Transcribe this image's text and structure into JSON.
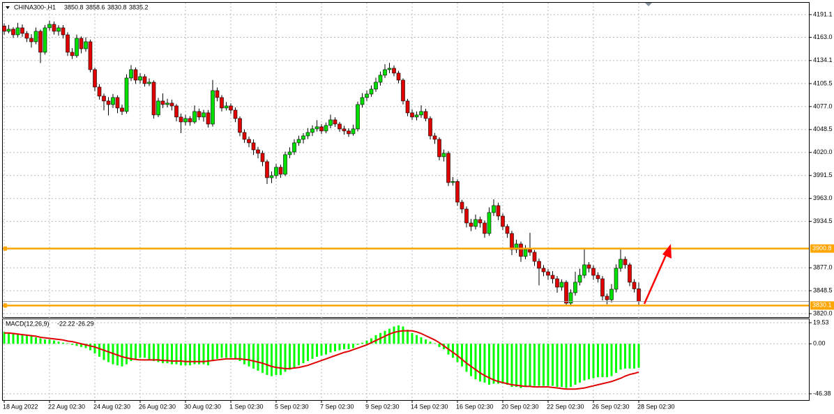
{
  "chart_data": [
    {
      "type": "candlestick",
      "title": "CHINA300-,H1",
      "categories": [
        "18 Aug 2022",
        null,
        null,
        null,
        null,
        null,
        null,
        null,
        null,
        null,
        "22 Aug 02:30",
        null,
        null,
        null,
        null,
        null,
        null,
        null,
        null,
        null,
        "24 Aug 02:30",
        null,
        null,
        null,
        null,
        null,
        null,
        null,
        null,
        null,
        "26 Aug 02:30",
        null,
        null,
        null,
        null,
        null,
        null,
        null,
        null,
        null,
        "30 Aug 02:30",
        null,
        null,
        null,
        null,
        null,
        null,
        null,
        null,
        null,
        "1 Sep 02:30",
        null,
        null,
        null,
        null,
        null,
        null,
        null,
        null,
        null,
        "5 Sep 02:30",
        null,
        null,
        null,
        null,
        null,
        null,
        null,
        null,
        null,
        "7 Sep 02:30",
        null,
        null,
        null,
        null,
        null,
        null,
        null,
        null,
        null,
        "9 Sep 02:30",
        null,
        null,
        null,
        null,
        null,
        null,
        null,
        null,
        null,
        "14 Sep 02:30",
        null,
        null,
        null,
        null,
        null,
        null,
        null,
        null,
        null,
        "16 Sep 02:30",
        null,
        null,
        null,
        null,
        null,
        null,
        null,
        null,
        null,
        "20 Sep 02:30",
        null,
        null,
        null,
        null,
        null,
        null,
        null,
        null,
        null,
        "22 Sep 02:30",
        null,
        null,
        null,
        null,
        null,
        null,
        null,
        null,
        null,
        "26 Sep 02:30",
        null,
        null,
        null,
        null,
        null,
        null,
        null,
        null,
        null,
        "28 Sep 02:30"
      ],
      "open": [
        4177.0,
        4170.4,
        4173.0,
        4166.0,
        4174.7,
        4167.8,
        4161.7,
        4157.4,
        4170.4,
        4144.4,
        4174.7,
        4179.0,
        4170.4,
        4174.7,
        4166.0,
        4144.4,
        4140.1,
        4161.7,
        4148.7,
        4157.4,
        4122.8,
        4101.2,
        4089.9,
        4083.9,
        4079.5,
        4088.2,
        4075.2,
        4070.9,
        4112.4,
        4122.8,
        4109.8,
        4114.1,
        4105.5,
        4107.2,
        4066.6,
        4083.9,
        4079.5,
        4081.3,
        4077.8,
        4064.0,
        4057.9,
        4062.2,
        4057.9,
        4070.9,
        4064.0,
        4069.2,
        4055.3,
        4096.8,
        4088.2,
        4075.2,
        4077.8,
        4072.6,
        4062.2,
        4044.9,
        4036.3,
        4032.0,
        4023.3,
        4019.0,
        4008.6,
        3988.7,
        3991.3,
        4001.7,
        3993.0,
        4017.3,
        4020.7,
        4032.0,
        4036.3,
        4040.6,
        4044.9,
        4049.3,
        4051.9,
        4046.7,
        4053.6,
        4060.5,
        4055.3,
        4049.3,
        4046.7,
        4043.2,
        4049.3,
        4079.5,
        4088.2,
        4092.5,
        4098.6,
        4107.2,
        4115.9,
        4122.8,
        4124.5,
        4118.5,
        4109.8,
        4083.9,
        4069.2,
        4064.0,
        4066.6,
        4070.9,
        4062.2,
        4040.6,
        4036.3,
        4014.7,
        4019.0,
        3982.7,
        3984.1,
        3958.4,
        3949.8,
        3932.5,
        3928.2,
        3936.8,
        3932.5,
        3919.5,
        3945.5,
        3954.1,
        3941.1,
        3928.2,
        3919.5,
        3899.6,
        3906.5,
        3891.0,
        3899.6,
        3896.2,
        3884.9,
        3876.3,
        3871.9,
        3867.6,
        3863.3,
        3852.9,
        3859.0,
        3833.0,
        3846.0,
        3859.0,
        3867.6,
        3880.6,
        3876.3,
        3867.6,
        3863.3,
        3841.7,
        3837.3,
        3850.3,
        3876.3,
        3887.5,
        3880.6,
        3859.0,
        3850.8
      ],
      "high": [
        4180.2,
        4178.3,
        4175.5,
        4180.9,
        4178.9,
        4170.6,
        4166.8,
        4175.1,
        4172.6,
        4178.2,
        4183.6,
        4182.5,
        4178.0,
        4178.1,
        4169.2,
        4149.6,
        4166.3,
        4164.0,
        4162.8,
        4160.1,
        4125.3,
        4104.8,
        4093.1,
        4088.7,
        4092.6,
        4091.0,
        4079.4,
        4117.0,
        4128.5,
        4125.6,
        4118.3,
        4117.2,
        4111.9,
        4109.5,
        4087.7,
        4093.3,
        4086.6,
        4085.4,
        4080.1,
        4068.3,
        4066.8,
        4065.1,
        4078.4,
        4074.5,
        4073.0,
        4072.8,
        4110.0,
        4100.7,
        4091.3,
        4082.6,
        4081.0,
        4075.9,
        4064.8,
        4048.6,
        4039.7,
        4036.2,
        4026.9,
        4022.4,
        4011.2,
        3996.5,
        4005.8,
        4004.9,
        4021.0,
        4026.4,
        4036.5,
        4040.8,
        4044.0,
        4050.3,
        4053.6,
        4060.1,
        4055.4,
        4057.2,
        4066.9,
        4063.7,
        4058.0,
        4053.1,
        4050.0,
        4054.5,
        4083.2,
        4093.6,
        4096.9,
        4103.2,
        4112.8,
        4120.4,
        4129.6,
        4131.2,
        4128.0,
        4121.3,
        4112.0,
        4086.5,
        4073.4,
        4071.0,
        4078.5,
        4074.3,
        4065.0,
        4044.2,
        4039.0,
        4023.6,
        4021.8,
        3989.5,
        3986.7,
        3961.2,
        3953.0,
        3937.6,
        3943.0,
        3940.3,
        3935.7,
        3951.9,
        3962.0,
        3957.6,
        3944.3,
        3931.0,
        3922.8,
        3911.9,
        3909.4,
        3905.1,
        3920.4,
        3899.0,
        3888.6,
        3880.2,
        3875.3,
        3872.8,
        3866.7,
        3862.5,
        3861.4,
        3850.2,
        3872.0,
        3875.8,
        3901.4,
        3884.0,
        3879.9,
        3871.4,
        3866.8,
        3845.0,
        3856.7,
        3881.2,
        3899.8,
        3890.9,
        3883.3,
        3862.7,
        3858.6
      ],
      "low": [
        4166.1,
        4167.9,
        4162.2,
        4163.1,
        4163.6,
        4157.0,
        4150.2,
        4154.3,
        4131.0,
        4141.5,
        4171.2,
        4166.3,
        4164.9,
        4161.4,
        4139.7,
        4136.0,
        4137.5,
        4143.1,
        4145.0,
        4119.5,
        4096.0,
        4085.6,
        4072.4,
        4066.0,
        4075.3,
        4068.8,
        4066.5,
        4068.2,
        4108.7,
        4105.1,
        4106.0,
        4101.8,
        4102.4,
        4062.0,
        4063.8,
        4075.1,
        4075.9,
        4072.2,
        4058.6,
        4044.0,
        4053.7,
        4053.2,
        4055.6,
        4060.1,
        4058.3,
        4050.9,
        4052.1,
        4083.5,
        4071.0,
        4072.4,
        4068.1,
        4057.7,
        4040.2,
        4031.9,
        4026.5,
        4017.0,
        4012.8,
        4003.1,
        3980.9,
        3982.0,
        3987.4,
        3988.6,
        3990.7,
        4012.9,
        4017.1,
        4028.4,
        4031.2,
        4036.7,
        4040.5,
        4046.0,
        4042.8,
        4043.9,
        4050.1,
        4051.8,
        4045.6,
        4042.2,
        4039.4,
        4040.8,
        4046.1,
        4075.7,
        4084.0,
        4089.1,
        4095.3,
        4103.0,
        4112.5,
        4118.4,
        4114.6,
        4105.9,
        4079.6,
        4065.0,
        4060.2,
        4059.8,
        4063.0,
        4058.7,
        4036.1,
        4030.7,
        4010.2,
        4008.9,
        3978.4,
        3979.0,
        3953.9,
        3944.6,
        3927.1,
        3922.4,
        3924.5,
        3926.8,
        3914.2,
        3916.6,
        3941.2,
        3936.0,
        3923.8,
        3914.1,
        3892.7,
        3895.3,
        3884.2,
        3887.5,
        3891.8,
        3879.3,
        3855.0,
        3866.5,
        3861.9,
        3857.4,
        3846.0,
        3848.8,
        3829.6,
        3830.1,
        3842.3,
        3855.1,
        3863.9,
        3871.2,
        3862.0,
        3858.7,
        3836.5,
        3831.6,
        3833.9,
        3846.4,
        3872.0,
        3875.8,
        3854.2,
        3846.3,
        3830.8
      ],
      "close": [
        4170.4,
        4173.0,
        4166.0,
        4174.7,
        4167.8,
        4161.7,
        4157.4,
        4170.4,
        4144.4,
        4174.7,
        4179.0,
        4170.4,
        4174.7,
        4166.0,
        4144.4,
        4140.1,
        4161.7,
        4148.7,
        4157.4,
        4122.8,
        4101.2,
        4089.9,
        4083.9,
        4079.5,
        4088.2,
        4075.2,
        4070.9,
        4112.4,
        4122.8,
        4109.8,
        4114.1,
        4105.5,
        4107.2,
        4066.6,
        4083.9,
        4079.5,
        4081.3,
        4077.8,
        4064.0,
        4057.9,
        4062.2,
        4057.9,
        4070.9,
        4064.0,
        4069.2,
        4055.3,
        4096.8,
        4088.2,
        4075.2,
        4077.8,
        4072.6,
        4062.2,
        4044.9,
        4036.3,
        4032.0,
        4023.3,
        4019.0,
        4008.6,
        3988.7,
        3991.3,
        4001.7,
        3993.0,
        4017.3,
        4020.7,
        4032.0,
        4036.3,
        4040.6,
        4044.9,
        4049.3,
        4051.9,
        4046.7,
        4053.6,
        4060.5,
        4055.3,
        4049.3,
        4046.7,
        4043.2,
        4049.3,
        4079.5,
        4088.2,
        4092.5,
        4098.6,
        4107.2,
        4115.9,
        4122.8,
        4124.5,
        4118.5,
        4109.8,
        4083.9,
        4069.2,
        4064.0,
        4066.6,
        4070.9,
        4062.2,
        4040.6,
        4036.3,
        4014.7,
        4019.0,
        3982.7,
        3984.1,
        3958.4,
        3949.8,
        3932.5,
        3928.2,
        3936.8,
        3932.5,
        3919.5,
        3945.5,
        3954.1,
        3941.1,
        3928.2,
        3919.5,
        3899.6,
        3906.5,
        3891.0,
        3899.6,
        3896.2,
        3884.9,
        3876.3,
        3871.9,
        3867.6,
        3863.3,
        3852.9,
        3859.0,
        3833.0,
        3846.0,
        3859.0,
        3867.6,
        3880.6,
        3876.3,
        3867.6,
        3863.3,
        3841.7,
        3837.3,
        3850.3,
        3876.3,
        3887.5,
        3880.6,
        3859.0,
        3850.8,
        3835.2
      ],
      "up_color": "#00e000",
      "down_color": "#e00000",
      "ylim": [
        3815.7,
        4204.9
      ],
      "yticks": [
        4191.1,
        {
          "value": 4163,
          "label": "4163.0"
        },
        4134.1,
        4105.5,
        {
          "value": 4077,
          "label": "4077.0"
        },
        4048.5,
        {
          "value": 4020,
          "label": "4020.0"
        },
        3991.5,
        {
          "value": 3963,
          "label": "3963.0"
        },
        3934.5,
        {
          "value": 3877,
          "label": "3877.0"
        },
        3848.5,
        {
          "value": 3820,
          "label": "3820.0"
        }
      ],
      "grid": true,
      "levels": [
        {
          "value": 3900.8,
          "color": "#ffa500"
        },
        {
          "value": 3830.1,
          "color": "#ffa500"
        }
      ]
    },
    {
      "type": "macd",
      "title": "MACD(12,26,9)",
      "series": [
        {
          "style": "histogram",
          "color": "#00ff00",
          "values": [
            11,
            10,
            10,
            9,
            9,
            8,
            7,
            6,
            5,
            4,
            4,
            3,
            2,
            1,
            0.5,
            -1,
            -2,
            -3,
            -4,
            -6,
            -9,
            -12,
            -15,
            -17,
            -19,
            -20,
            -21,
            -19,
            -16,
            -14,
            -13,
            -13,
            -15,
            -16,
            -17,
            -18,
            -18,
            -19,
            -19,
            -20,
            -20,
            -20,
            -19,
            -19,
            -19,
            -20,
            -16,
            -14,
            -13,
            -13,
            -13,
            -14,
            -16,
            -19,
            -21,
            -23,
            -25,
            -27,
            -29,
            -30,
            -29,
            -29,
            -26,
            -24,
            -22,
            -20,
            -18,
            -16,
            -14,
            -12,
            -11,
            -10,
            -8,
            -7,
            -6,
            -5,
            -5,
            -4,
            -1,
            1,
            3,
            5,
            8,
            10,
            12,
            14,
            16,
            17,
            16,
            13,
            10,
            8,
            6,
            4,
            2,
            0.5,
            -3,
            -5,
            -10,
            -13,
            -17,
            -21,
            -26,
            -30,
            -33,
            -35,
            -36,
            -38,
            -37,
            -37,
            -37,
            -38,
            -40,
            -40,
            -41,
            -40,
            -40,
            -39,
            -39,
            -39,
            -39,
            -39,
            -40,
            -40,
            -41,
            -40,
            -38,
            -36,
            -34,
            -33,
            -32,
            -31,
            -31,
            -31,
            -30,
            -27,
            -24,
            -23,
            -23,
            -23,
            -22.22
          ]
        },
        {
          "style": "line",
          "color": "#e00000",
          "values": [
            10,
            10,
            9.5,
            9,
            8.5,
            8,
            7.5,
            7,
            6,
            5.5,
            5,
            4.5,
            4,
            3.5,
            2.5,
            2,
            1,
            0,
            -1,
            -2,
            -3,
            -4.5,
            -6,
            -7.5,
            -9,
            -10.5,
            -12,
            -13,
            -14,
            -14.5,
            -15,
            -15,
            -15,
            -15,
            -15,
            -15.5,
            -15.5,
            -16,
            -16,
            -16,
            -16.5,
            -16.5,
            -16.5,
            -16.5,
            -16.5,
            -16,
            -15.5,
            -15,
            -14.5,
            -14,
            -14,
            -14,
            -14,
            -14.5,
            -15,
            -16,
            -17,
            -18,
            -19.5,
            -21,
            -22,
            -22.5,
            -23,
            -23,
            -22.5,
            -22,
            -21,
            -20,
            -18.5,
            -17,
            -15.5,
            -14,
            -12.5,
            -11,
            -9.5,
            -8,
            -7,
            -5.5,
            -4,
            -2.5,
            -1,
            1,
            3,
            5,
            7,
            9,
            10.5,
            11.5,
            12,
            12,
            12,
            11,
            9.5,
            7.5,
            5.5,
            3.5,
            1,
            -2,
            -5,
            -8,
            -11,
            -14.5,
            -18,
            -21,
            -24,
            -27,
            -29.5,
            -31.5,
            -33.5,
            -35,
            -36,
            -37,
            -38,
            -38.5,
            -39,
            -39.5,
            -39.5,
            -40,
            -40,
            -40,
            -40,
            -40.5,
            -41,
            -41.5,
            -42,
            -42,
            -42,
            -41.5,
            -41,
            -40,
            -39,
            -38,
            -37,
            -36,
            -35,
            -33.5,
            -32,
            -30,
            -28.5,
            -27.5,
            -26.29
          ]
        }
      ],
      "ylim": [
        -46.38,
        19.53
      ],
      "yticks": [
        19.53,
        {
          "value": 0,
          "label": "0.00"
        },
        -46.38
      ]
    }
  ]
}
